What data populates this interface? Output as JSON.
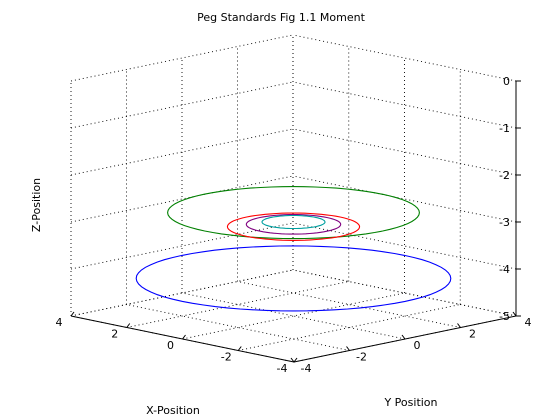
{
  "chart_data": {
    "type": "3d-line",
    "title": "Peg Standards Fig 1.1 Moment",
    "xlabel": "X-Position",
    "ylabel": "Y Position",
    "zlabel": "Z-Position",
    "xlim": [
      -4,
      4
    ],
    "ylim": [
      -4,
      4
    ],
    "zlim": [
      -5,
      0
    ],
    "xticks": [
      "-4",
      "-2",
      "0",
      "2",
      "4"
    ],
    "yticks": [
      "-4",
      "-2",
      "0",
      "2",
      "4"
    ],
    "zticks": [
      "-5",
      "-4",
      "-3",
      "-2",
      "-1",
      "0"
    ],
    "grid": true,
    "series": [
      {
        "shape": "circle",
        "color": "#008000",
        "center": [
          0,
          0,
          -2.8
        ],
        "radius": 0.8
      },
      {
        "shape": "circle",
        "color": "#0000ff",
        "center": [
          0,
          0,
          -4.2
        ],
        "radius": 1.0
      },
      {
        "shape": "circle",
        "color": "#ff0000",
        "center": [
          0,
          0,
          -3.1
        ],
        "radius": 0.42
      },
      {
        "shape": "circle",
        "color": "#800080",
        "center": [
          0,
          0,
          -3.05
        ],
        "radius": 0.3
      },
      {
        "shape": "circle",
        "color": "#00a0a0",
        "center": [
          0,
          0,
          -3.0
        ],
        "radius": 0.2
      }
    ]
  }
}
